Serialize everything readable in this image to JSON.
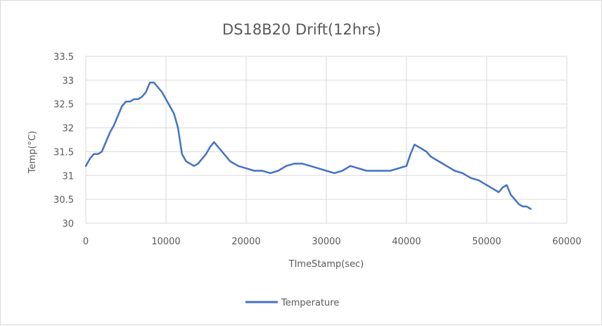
{
  "chart_data": {
    "type": "line",
    "title": "DS18B20 Drift(12hrs)",
    "xlabel": "TImeStamp(sec)",
    "ylabel": "Temp(°C)",
    "xlim": [
      0,
      60000
    ],
    "ylim": [
      30,
      33.5
    ],
    "x_ticks": [
      0,
      10000,
      20000,
      30000,
      40000,
      50000,
      60000
    ],
    "y_ticks": [
      30,
      30.5,
      31,
      31.5,
      32,
      32.5,
      33,
      33.5
    ],
    "y_tick_labels": [
      "30",
      "30.5",
      "31",
      "31.5",
      "32",
      "32.5",
      "33",
      "33.5"
    ],
    "grid": true,
    "legend_position": "bottom",
    "series": [
      {
        "name": "Temperature",
        "color": "#4472c4",
        "x": [
          0,
          500,
          1000,
          1500,
          2000,
          2500,
          3000,
          3500,
          4000,
          4500,
          5000,
          5500,
          6000,
          6500,
          7000,
          7500,
          8000,
          8500,
          9000,
          9500,
          10000,
          10500,
          11000,
          11500,
          12000,
          12500,
          13000,
          13500,
          14000,
          14500,
          15000,
          15500,
          16000,
          16500,
          17000,
          17500,
          18000,
          18500,
          19000,
          20000,
          21000,
          22000,
          23000,
          24000,
          25000,
          26000,
          27000,
          28000,
          29000,
          30000,
          31000,
          32000,
          33000,
          34000,
          35000,
          36000,
          37000,
          38000,
          39000,
          40000,
          40500,
          41000,
          41500,
          42000,
          42500,
          43000,
          44000,
          45000,
          46000,
          47000,
          48000,
          49000,
          50000,
          51000,
          51500,
          52000,
          52500,
          53000,
          53500,
          54000,
          54500,
          55000,
          55500
        ],
        "y": [
          31.2,
          31.35,
          31.45,
          31.45,
          31.5,
          31.7,
          31.9,
          32.05,
          32.25,
          32.45,
          32.55,
          32.55,
          32.6,
          32.6,
          32.65,
          32.75,
          32.95,
          32.95,
          32.85,
          32.75,
          32.6,
          32.45,
          32.3,
          32.0,
          31.45,
          31.3,
          31.25,
          31.2,
          31.25,
          31.35,
          31.45,
          31.6,
          31.7,
          31.6,
          31.5,
          31.4,
          31.3,
          31.25,
          31.2,
          31.15,
          31.1,
          31.1,
          31.05,
          31.1,
          31.2,
          31.25,
          31.25,
          31.2,
          31.15,
          31.1,
          31.05,
          31.1,
          31.2,
          31.15,
          31.1,
          31.1,
          31.1,
          31.1,
          31.15,
          31.2,
          31.45,
          31.65,
          31.6,
          31.55,
          31.5,
          31.4,
          31.3,
          31.2,
          31.1,
          31.05,
          30.95,
          30.9,
          30.8,
          30.7,
          30.65,
          30.75,
          30.8,
          30.6,
          30.5,
          30.4,
          30.35,
          30.35,
          30.3
        ]
      }
    ]
  }
}
